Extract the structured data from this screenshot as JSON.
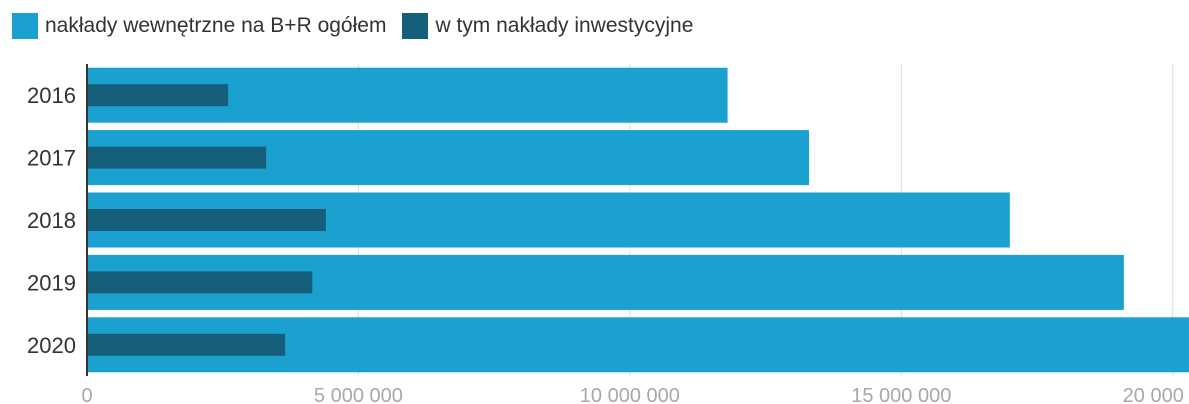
{
  "colors": {
    "total": "#1aa1cf",
    "investment": "#165f7a",
    "grid": "#dddddd",
    "axis": "#333333",
    "tick_label": "#a8a8a8",
    "category_label": "#333333"
  },
  "legend": {
    "placement": "top-left",
    "items": [
      {
        "label": "nakłady wewnętrzne na B+R ogółem",
        "color": "#1aa1cf"
      },
      {
        "label": "w tym nakłady inwestycyjne",
        "color": "#165f7a"
      }
    ]
  },
  "chart_data": {
    "type": "bar",
    "orientation": "horizontal",
    "categories": [
      "2016",
      "2017",
      "2018",
      "2019",
      "2020"
    ],
    "series": [
      {
        "name": "nakłady wewnętrzne na B+R ogółem",
        "values": [
          11800000,
          13300000,
          17000000,
          19100000,
          20300000
        ]
      },
      {
        "name": "w tym nakłady inwestycyjne",
        "values": [
          2600000,
          3300000,
          4400000,
          4150000,
          3650000
        ]
      }
    ],
    "xlim": [
      0,
      20300000
    ],
    "xticks": [
      0,
      5000000,
      10000000,
      15000000,
      20000000
    ],
    "xtick_labels": [
      "0",
      "5 000 000",
      "10 000 000",
      "15 000 000",
      "20 000 000"
    ],
    "grid": "vertical",
    "title": "",
    "xlabel": "",
    "ylabel": ""
  }
}
